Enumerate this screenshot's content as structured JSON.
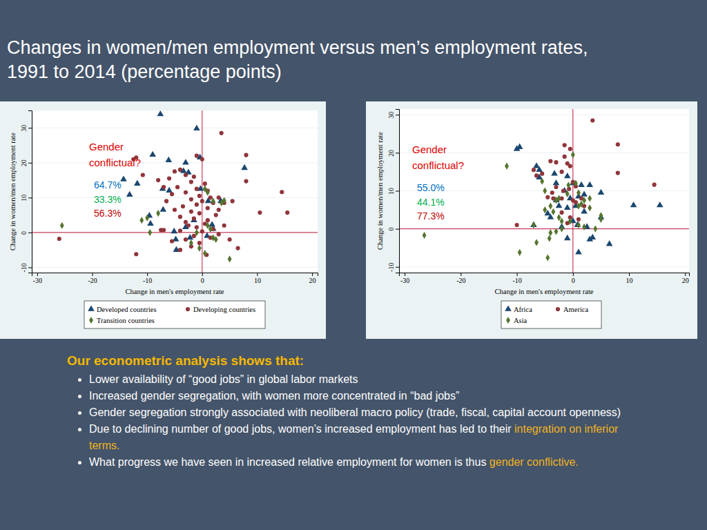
{
  "slide": {
    "title_lines": [
      "Changes in women/men employment versus men’s employment rates,",
      "1991 to 2014 (percentage points)"
    ],
    "heading": "Our econometric analysis shows that:",
    "bullets": [
      {
        "text": "Lower availability of “good jobs” in global labor markets"
      },
      {
        "text": "Increased gender segregation, with women more concentrated in “bad jobs”"
      },
      {
        "text": "Gender segregation strongly associated with neoliberal macro policy (trade, fiscal, capital account openness)"
      },
      {
        "text": "Due to declining number of good jobs, women’s increased employment has led to their ",
        "highlight": "integration on inferior terms."
      },
      {
        "text": "What progress we have seen in increased relative employment for women is thus ",
        "highlight": "gender conflictive."
      }
    ]
  },
  "chart_data": [
    {
      "type": "scatter",
      "x_label": "Change in men's employment rate",
      "y_label": "Change in women/men employment rate",
      "xlim": [
        -31,
        21
      ],
      "ylim": [
        -11.5,
        35
      ],
      "xticks": [
        -30,
        -20,
        -10,
        0,
        10,
        20
      ],
      "yticks": [
        -10,
        0,
        10,
        20,
        30
      ],
      "grid": true,
      "legend": "bottom",
      "reference_lines": {
        "x": 0,
        "y": 0
      },
      "annotations": [
        {
          "lines": [
            "Gender",
            "conflictual?"
          ],
          "color": "#e00000"
        },
        {
          "value": 64.7,
          "label": "64.7%",
          "color": "#0070c0"
        },
        {
          "value": 33.3,
          "label": "33.3%",
          "color": "#00b050"
        },
        {
          "value": 56.3,
          "label": "56.3%",
          "color": "#c00000"
        }
      ],
      "series": [
        {
          "name": "Developed countries",
          "color": "#1a476f",
          "marker": "triangle",
          "x": [
            -7.6,
            -1,
            -9,
            -6.1,
            -3.4,
            -0.4,
            7.7,
            -13.2,
            -14.3,
            -11.8,
            -7.2,
            -7.1,
            -9.4,
            -5.1,
            -4.7,
            -3,
            -2.5,
            0.9,
            1.1,
            1.8,
            3.4,
            -4.8,
            -2.2,
            -1.5,
            -3,
            -9.6,
            2,
            -0.3,
            -6
          ],
          "values": [
            33.9,
            29.8,
            22.3,
            20.7,
            17.6,
            21.5,
            18.5,
            10.8,
            15.2,
            14,
            12.5,
            6.5,
            2.5,
            0.3,
            -5,
            20,
            17.2,
            -1,
            9,
            2.2,
            9,
            -2,
            -1.5,
            3.5,
            1.5,
            4.8,
            1,
            12.5,
            12
          ]
        },
        {
          "name": "Developing countries",
          "color": "#90353b",
          "marker": "circle",
          "x": [
            3.5,
            -26,
            -12,
            -12.5,
            8,
            8,
            14.5,
            15.5,
            10.5,
            -12,
            -4,
            0.8,
            6.5,
            -7,
            -7.5,
            -10.8,
            -1,
            0,
            -4,
            -5,
            -3,
            -1.5,
            -6,
            -8,
            -2,
            0.5,
            -7,
            -4.5,
            -1,
            1,
            -3,
            -5.5,
            -0.5,
            1.5,
            3,
            -2,
            -6.5,
            0,
            2,
            4,
            -1,
            -3.5,
            1,
            -5,
            3,
            -2,
            -0.5,
            2.5,
            -4,
            -1.5,
            1,
            -3,
            0.5,
            -2.5,
            4,
            -1,
            2,
            -4,
            0,
            3,
            -1.5,
            1.5,
            -3,
            5,
            -0.5,
            -2,
            -5.5,
            5.5
          ],
          "values": [
            28.5,
            -1.8,
            21.5,
            21,
            22.2,
            14.7,
            11.6,
            5.7,
            5.7,
            -6.2,
            -5,
            -6.4,
            -4.5,
            0.7,
            0.7,
            16.5,
            22,
            21,
            18,
            17.5,
            16.5,
            16,
            15.5,
            15,
            14.5,
            14,
            13,
            13,
            12.5,
            12,
            11.5,
            11,
            10.5,
            10,
            10,
            9.5,
            9,
            9,
            8.5,
            8.5,
            8,
            7.5,
            7,
            6.5,
            6.5,
            6,
            5.5,
            5,
            4.5,
            4,
            3.5,
            3,
            2.5,
            2,
            2,
            1.5,
            1,
            0.5,
            0.3,
            -0.5,
            -1,
            -1.5,
            -2,
            -2,
            -3,
            -4,
            -2.5,
            9
          ]
        },
        {
          "name": "Transition countries",
          "color": "#55752f",
          "marker": "diamond",
          "x": [
            -25.5,
            -11,
            -10,
            -9.5,
            -8,
            -2,
            0.5,
            1,
            2,
            4,
            3.5,
            -0.5,
            1.5,
            2,
            0.5,
            5,
            2.5,
            -1,
            1
          ],
          "values": [
            2,
            3.5,
            4.2,
            0,
            5.5,
            -3,
            12.5,
            11.5,
            9,
            9.2,
            8.5,
            -4.5,
            1,
            -1.5,
            -6,
            -7.6,
            -2,
            0,
            2
          ]
        }
      ]
    },
    {
      "type": "scatter",
      "x_label": "Change in men's employment rate",
      "y_label": "Change in women/men employment rate",
      "xlim": [
        -31,
        20.7
      ],
      "ylim": [
        -11.5,
        31.5
      ],
      "xticks": [
        -30,
        -20,
        -10,
        0,
        10,
        20
      ],
      "yticks": [
        -10,
        0,
        10,
        20,
        30
      ],
      "grid": true,
      "legend": "bottom",
      "reference_lines": {
        "x": 0,
        "y": 0
      },
      "annotations": [
        {
          "lines": [
            "Gender",
            "conflictual?"
          ],
          "color": "#e00000"
        },
        {
          "value": 55.0,
          "label": "55.0%",
          "color": "#0070c0"
        },
        {
          "value": 44.1,
          "label": "44.1%",
          "color": "#00b050"
        },
        {
          "value": 77.3,
          "label": "77.3%",
          "color": "#c00000"
        }
      ],
      "series": [
        {
          "name": "Africa",
          "color": "#1a476f",
          "marker": "triangle",
          "x": [
            -10,
            -9.5,
            -6.5,
            -6,
            -3,
            -6,
            -3.3,
            -1,
            0,
            1.5,
            3,
            5,
            -1.5,
            -0.5,
            1,
            2,
            -3,
            -2.5,
            -1,
            0.5,
            2,
            -7,
            -2,
            0,
            -1,
            1,
            3,
            3.5,
            6.5,
            10.8,
            15.5,
            5,
            -4,
            2.5,
            -4.5,
            0.8
          ],
          "values": [
            21,
            21.5,
            16.5,
            13.5,
            12,
            15.5,
            14.5,
            13.8,
            12,
            11.5,
            11.5,
            9.5,
            10,
            8,
            8.5,
            9,
            7.5,
            6,
            5.5,
            6,
            4.5,
            1,
            0.5,
            2,
            -2.5,
            -6.2,
            -2.8,
            -2.3,
            -4,
            6.2,
            6.2,
            3,
            3,
            0.5,
            4,
            1
          ]
        },
        {
          "name": "America",
          "color": "#90353b",
          "marker": "circle",
          "x": [
            3.5,
            -1.5,
            8,
            -0.5,
            -1.5,
            -3,
            -4,
            -1,
            -0.5,
            -7,
            -5.5,
            -6.5,
            -2,
            -3,
            0,
            -0.7,
            0.5,
            -3.7,
            -1.7,
            -3.5,
            -2,
            8,
            14.5,
            0,
            -10,
            -2,
            -0.5,
            1,
            -1,
            2,
            -4.5,
            1.5,
            0.5
          ],
          "values": [
            28.5,
            22,
            22.2,
            21,
            19,
            17.5,
            17.8,
            17.2,
            16.5,
            15.5,
            14.5,
            14,
            15,
            11,
            12.3,
            10.5,
            11.2,
            9.5,
            10,
            8,
            8,
            14.7,
            11.6,
            7.5,
            1,
            4.3,
            3,
            2.5,
            1.5,
            6,
            8.3,
            8,
            7
          ]
        },
        {
          "name": "Asia",
          "color": "#55752f",
          "marker": "diamond",
          "x": [
            -11.8,
            0,
            -5.5,
            -5,
            -3,
            -2.5,
            -4,
            -5,
            -3.5,
            -1,
            0.5,
            1,
            1,
            2,
            3,
            1.5,
            -2,
            -0.5,
            1,
            -2,
            -4,
            -3,
            2,
            5,
            5,
            -26.5,
            -9.5,
            -4.5,
            -7,
            -6.5,
            -4.2,
            -0.8,
            3,
            4,
            -2.5
          ],
          "values": [
            16.5,
            19.5,
            12.5,
            10,
            7.5,
            8,
            6,
            5,
            4.5,
            9.2,
            12,
            9.5,
            6,
            7.5,
            8,
            6.5,
            2,
            2,
            1,
            0,
            -1,
            -0.7,
            0.5,
            3.5,
            2.5,
            -1.7,
            -6.2,
            -7.6,
            1,
            -3.6,
            -2.5,
            11.5,
            5.5,
            0,
            3
          ]
        }
      ]
    }
  ]
}
